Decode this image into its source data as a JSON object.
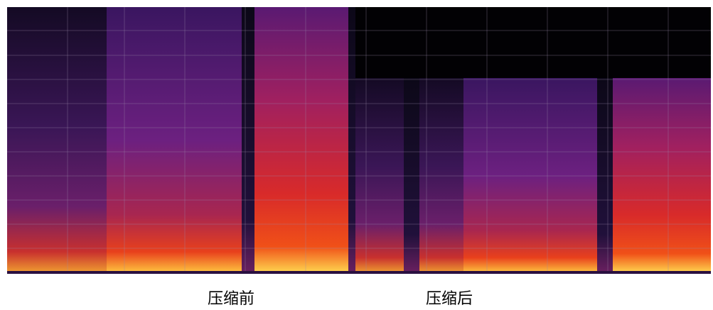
{
  "labels": {
    "before": "压缩前",
    "after": "压缩后"
  }
}
